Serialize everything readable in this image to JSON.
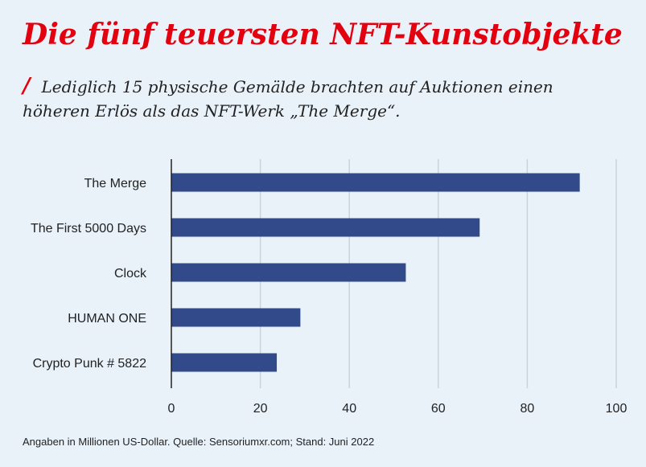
{
  "title": "Die fünf teuersten NFT-Kunstobjekte",
  "subtitle_marker": "/",
  "subtitle": "Lediglich 15 physische Gemälde brachten auf Auktionen einen höheren Erlös als das NFT-Werk „The Merge“.",
  "footnote": "Angaben in Millionen US-Dollar. Quelle: Sensoriumxr.com; Stand: Juni 2022",
  "colors": {
    "title": "#e3000f",
    "bar": "#334a8a",
    "grid": "#c9d3dc",
    "background": "#e9f2f9"
  },
  "chart_data": {
    "type": "bar",
    "orientation": "horizontal",
    "categories": [
      "The Merge",
      "The First 5000 Days",
      "Clock",
      "HUMAN ONE",
      "Crypto Punk # 5822"
    ],
    "values": [
      91.8,
      69.3,
      52.7,
      29.0,
      23.7
    ],
    "xlim": [
      0,
      100
    ],
    "xticks": [
      "0",
      "20",
      "40",
      "60",
      "80",
      "100"
    ],
    "grid": "vertical",
    "legend": "none"
  }
}
